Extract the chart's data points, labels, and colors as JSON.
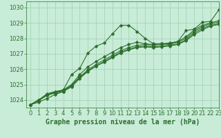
{
  "bg_color": "#c8ecd8",
  "grid_color": "#9ecfb0",
  "line_color": "#2d6e2d",
  "title": "Graphe pression niveau de la mer (hPa)",
  "xlim": [
    -0.5,
    23
  ],
  "ylim": [
    1023.5,
    1030.4
  ],
  "yticks": [
    1024,
    1025,
    1026,
    1027,
    1028,
    1029,
    1030
  ],
  "xticks": [
    0,
    1,
    2,
    3,
    4,
    5,
    6,
    7,
    8,
    9,
    10,
    11,
    12,
    13,
    14,
    15,
    16,
    17,
    18,
    19,
    20,
    21,
    22,
    23
  ],
  "series": [
    {
      "x": [
        0,
        1,
        2,
        3,
        4,
        5,
        6,
        7,
        8,
        9,
        10,
        11,
        12,
        13,
        14,
        15,
        16,
        17,
        18,
        19,
        20,
        21,
        22,
        23
      ],
      "y": [
        1023.7,
        1024.0,
        1024.3,
        1024.5,
        1024.65,
        1025.65,
        1026.05,
        1027.05,
        1027.5,
        1027.7,
        1028.3,
        1028.85,
        1028.85,
        1028.45,
        1028.0,
        1027.65,
        1027.65,
        1027.6,
        1027.8,
        1028.5,
        1028.6,
        1029.05,
        1029.1,
        1029.85
      ],
      "marker": "D",
      "lw": 0.8,
      "ms": 2.5
    },
    {
      "x": [
        0,
        1,
        2,
        3,
        4,
        5,
        6,
        7,
        8,
        9,
        10,
        11,
        12,
        13,
        14,
        15,
        16,
        17,
        18,
        19,
        20,
        21,
        22,
        23
      ],
      "y": [
        1023.7,
        1024.0,
        1024.4,
        1024.55,
        1024.65,
        1025.0,
        1025.65,
        1026.15,
        1026.5,
        1026.8,
        1027.1,
        1027.4,
        1027.6,
        1027.75,
        1027.65,
        1027.6,
        1027.65,
        1027.7,
        1027.8,
        1028.1,
        1028.55,
        1028.85,
        1029.0,
        1029.15
      ],
      "marker": "D",
      "lw": 0.8,
      "ms": 2.5
    },
    {
      "x": [
        0,
        1,
        2,
        3,
        4,
        5,
        6,
        7,
        8,
        9,
        10,
        11,
        12,
        13,
        14,
        15,
        16,
        17,
        18,
        19,
        20,
        21,
        22,
        23
      ],
      "y": [
        1023.7,
        1024.0,
        1024.35,
        1024.5,
        1024.6,
        1024.95,
        1025.5,
        1025.95,
        1026.3,
        1026.6,
        1026.9,
        1027.2,
        1027.4,
        1027.55,
        1027.6,
        1027.55,
        1027.6,
        1027.65,
        1027.75,
        1028.0,
        1028.45,
        1028.75,
        1028.95,
        1029.05
      ],
      "marker": "D",
      "lw": 0.8,
      "ms": 2.5
    },
    {
      "x": [
        0,
        1,
        2,
        3,
        4,
        5,
        6,
        7,
        8,
        9,
        10,
        11,
        12,
        13,
        14,
        15,
        16,
        17,
        18,
        19,
        20,
        21,
        22,
        23
      ],
      "y": [
        1023.7,
        1023.95,
        1024.3,
        1024.45,
        1024.55,
        1024.9,
        1025.45,
        1025.9,
        1026.2,
        1026.5,
        1026.8,
        1027.1,
        1027.3,
        1027.45,
        1027.5,
        1027.45,
        1027.5,
        1027.55,
        1027.65,
        1027.9,
        1028.35,
        1028.65,
        1028.85,
        1028.95
      ],
      "marker": "D",
      "lw": 0.8,
      "ms": 2.5
    },
    {
      "x": [
        0,
        1,
        2,
        3,
        4,
        5,
        6,
        7,
        8,
        9,
        10,
        11,
        12,
        13,
        14,
        15,
        16,
        17,
        18,
        19,
        20,
        21,
        22,
        23
      ],
      "y": [
        1023.7,
        1023.85,
        1024.1,
        1024.35,
        1024.55,
        1024.85,
        1025.4,
        1025.85,
        1026.2,
        1026.45,
        1026.75,
        1027.05,
        1027.25,
        1027.4,
        1027.45,
        1027.4,
        1027.45,
        1027.5,
        1027.6,
        1027.85,
        1028.25,
        1028.55,
        1028.8,
        1028.9
      ],
      "marker": "D",
      "lw": 0.8,
      "ms": 2.5
    }
  ],
  "title_fontsize": 7,
  "tick_fontsize": 6
}
